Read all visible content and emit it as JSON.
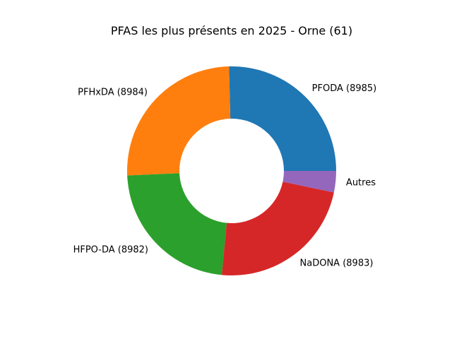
{
  "chart_data": {
    "type": "pie",
    "donut": true,
    "title": "PFAS les plus présents en 2025 - Orne (61)",
    "categories": [
      "PFODA (8985)",
      "PFHxDA (8984)",
      "HFPO-DA (8982)",
      "NaDONA (8983)",
      "Autres"
    ],
    "values": [
      25.4,
      25.3,
      22.8,
      23.2,
      3.3
    ],
    "value_unit": "percent of total (estimated)",
    "colors": [
      "#1f77b4",
      "#ff7f0e",
      "#2ca02c",
      "#d62728",
      "#9467bd"
    ],
    "start_angle_deg": 0,
    "direction": "counterclockwise"
  }
}
